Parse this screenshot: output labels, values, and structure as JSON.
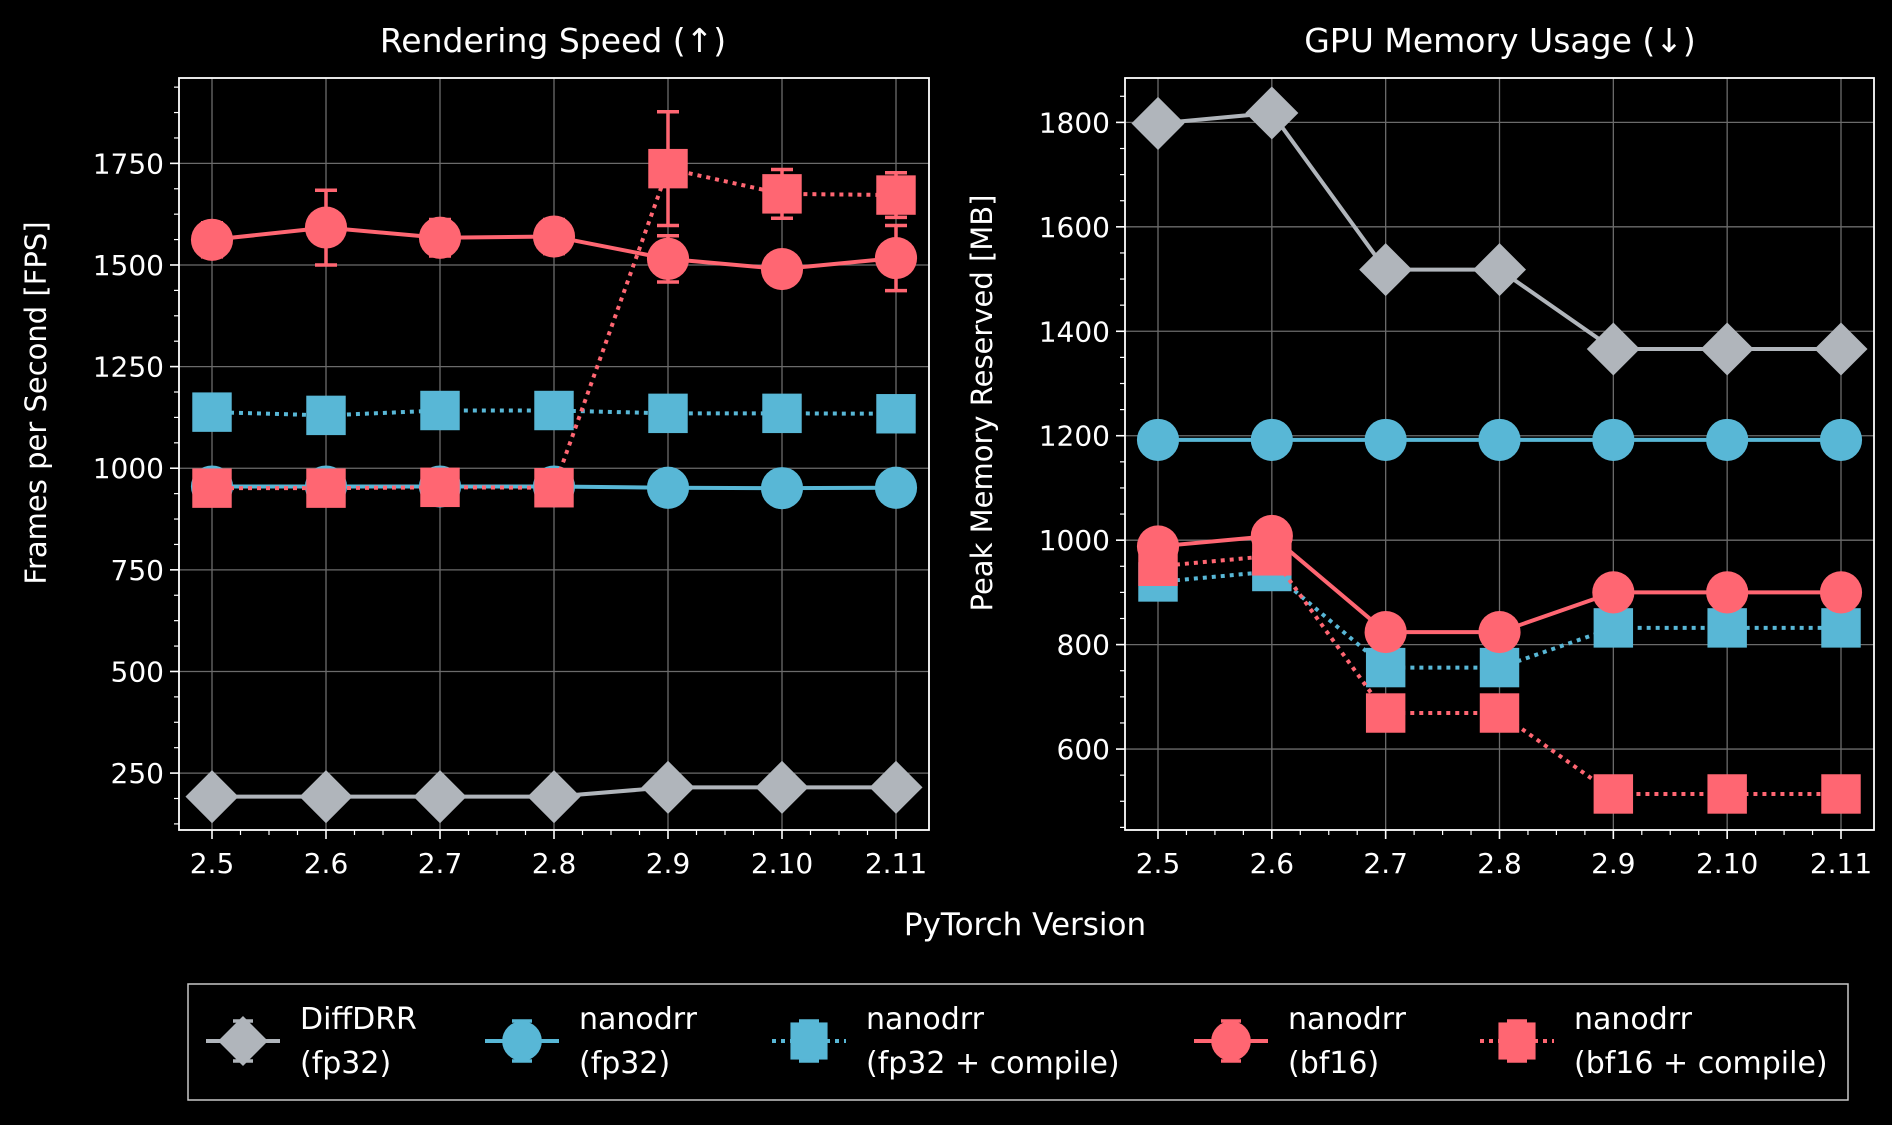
{
  "figure": {
    "background": "#000000",
    "shared_xlabel": "PyTorch Version"
  },
  "chart_data": [
    {
      "type": "line",
      "title": "Rendering Speed (↑)",
      "xlabel": "",
      "ylabel": "Frames per Second [FPS]",
      "categories": [
        "2.5",
        "2.6",
        "2.7",
        "2.8",
        "2.9",
        "2.10",
        "2.11"
      ],
      "ylim": [
        110,
        1960
      ],
      "yticks": [
        250,
        500,
        750,
        1000,
        1250,
        1500,
        1750
      ],
      "grid": true,
      "series": [
        {
          "name": "DiffDRR (fp32)",
          "color": "#b0b5bb",
          "marker": "diamond",
          "dash": "solid",
          "values": [
            192,
            192,
            192,
            192,
            215,
            215,
            215
          ],
          "err": [
            0,
            0,
            0,
            0,
            0,
            0,
            0
          ]
        },
        {
          "name": "nanodrr (fp32)",
          "color": "#58b7d6",
          "marker": "circle",
          "dash": "solid",
          "values": [
            955,
            955,
            955,
            955,
            952,
            951,
            952
          ],
          "err": [
            0,
            0,
            0,
            0,
            0,
            0,
            0
          ]
        },
        {
          "name": "nanodrr (fp32 + compile)",
          "color": "#58b7d6",
          "marker": "square",
          "dash": "dotted",
          "values": [
            1138,
            1130,
            1142,
            1142,
            1135,
            1135,
            1134
          ],
          "err": [
            0,
            0,
            0,
            0,
            0,
            0,
            0
          ]
        },
        {
          "name": "nanodrr (bf16)",
          "color": "#ff6672",
          "marker": "circle",
          "dash": "solid",
          "values": [
            1562,
            1592,
            1567,
            1570,
            1515,
            1490,
            1517
          ],
          "err": [
            42,
            92,
            45,
            42,
            57,
            38,
            80
          ]
        },
        {
          "name": "nanodrr (bf16 + compile)",
          "color": "#ff6672",
          "marker": "square",
          "dash": "dotted",
          "values": [
            951,
            951,
            953,
            952,
            1737,
            1675,
            1672
          ],
          "err": [
            0,
            0,
            0,
            0,
            140,
            60,
            55
          ]
        }
      ]
    },
    {
      "type": "line",
      "title": "GPU Memory Usage (↓)",
      "xlabel": "",
      "ylabel": "Peak Memory Reserved [MB]",
      "categories": [
        "2.5",
        "2.6",
        "2.7",
        "2.8",
        "2.9",
        "2.10",
        "2.11"
      ],
      "ylim": [
        445,
        1885
      ],
      "yticks": [
        600,
        800,
        1000,
        1200,
        1400,
        1600,
        1800
      ],
      "grid": true,
      "series": [
        {
          "name": "DiffDRR (fp32)",
          "color": "#b0b5bb",
          "marker": "diamond",
          "dash": "solid",
          "values": [
            1798,
            1818,
            1518,
            1518,
            1366,
            1366,
            1366
          ]
        },
        {
          "name": "nanodrr (fp32)",
          "color": "#58b7d6",
          "marker": "circle",
          "dash": "solid",
          "values": [
            1192,
            1192,
            1192,
            1192,
            1192,
            1192,
            1192
          ]
        },
        {
          "name": "nanodrr (fp32 + compile)",
          "color": "#58b7d6",
          "marker": "square",
          "dash": "dotted",
          "values": [
            920,
            940,
            756,
            756,
            832,
            832,
            832
          ]
        },
        {
          "name": "nanodrr (bf16)",
          "color": "#ff6672",
          "marker": "circle",
          "dash": "solid",
          "values": [
            988,
            1008,
            824,
            824,
            900,
            900,
            900
          ]
        },
        {
          "name": "nanodrr (bf16 + compile)",
          "color": "#ff6672",
          "marker": "square",
          "dash": "dotted",
          "values": [
            950,
            970,
            669,
            669,
            514,
            514,
            514
          ]
        }
      ]
    }
  ],
  "legend": {
    "placement": "bottom",
    "entries": [
      {
        "line1": "DiffDRR",
        "line2": "(fp32)",
        "color": "#b0b5bb",
        "marker": "diamond",
        "dash": "solid"
      },
      {
        "line1": "nanodrr",
        "line2": "(fp32)",
        "color": "#58b7d6",
        "marker": "circle",
        "dash": "solid"
      },
      {
        "line1": "nanodrr",
        "line2": "(fp32 + compile)",
        "color": "#58b7d6",
        "marker": "square",
        "dash": "dotted"
      },
      {
        "line1": "nanodrr",
        "line2": "(bf16)",
        "color": "#ff6672",
        "marker": "circle",
        "dash": "solid"
      },
      {
        "line1": "nanodrr",
        "line2": "(bf16 + compile)",
        "color": "#ff6672",
        "marker": "square",
        "dash": "dotted"
      }
    ]
  }
}
